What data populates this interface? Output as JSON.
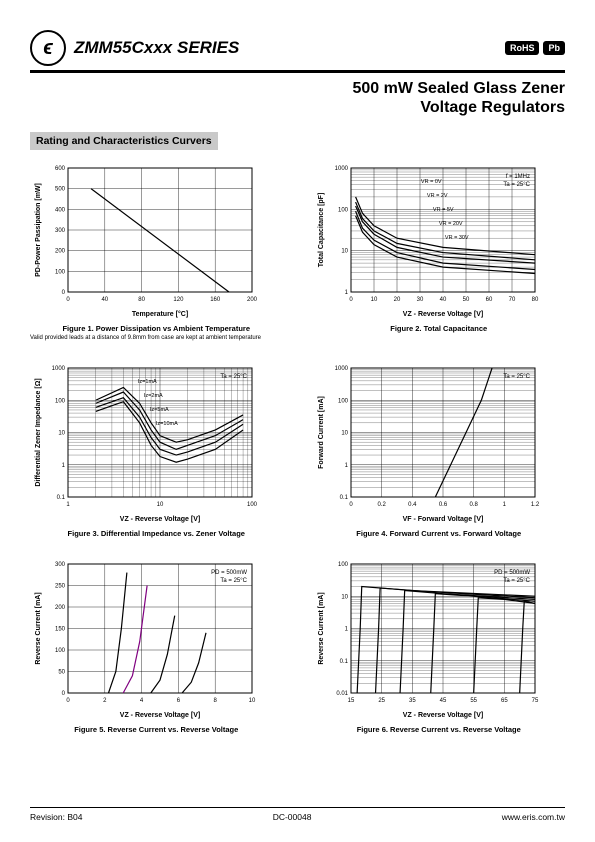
{
  "header": {
    "series": "ZMM55Cxxx SERIES",
    "badges": [
      "RoHS",
      "Pb"
    ],
    "subtitle1": "500 mW Sealed Glass Zener",
    "subtitle2": "Voltage Regulators"
  },
  "section_title": "Rating and Characteristics Curvers",
  "fig1": {
    "caption": "Figure 1. Power Dissipation vs Ambient Temperature",
    "sub": "Valid provided leads at a distance of 9.8mm from case are kept at ambient temperature",
    "xlabel": "Temperature [°C]",
    "ylabel": "PD-Power Passipation [mW]",
    "xticks": [
      "0",
      "40",
      "80",
      "120",
      "160",
      "200"
    ],
    "yticks": [
      "0",
      "100",
      "200",
      "300",
      "400",
      "500",
      "600"
    ],
    "line": [
      [
        25,
        500
      ],
      [
        175,
        0
      ]
    ],
    "grid_color": "#000000",
    "plot_bg": "#ffffff",
    "line_color": "#000000"
  },
  "fig2": {
    "caption": "Figure 2. Total Capacitance",
    "xlabel": "VZ - Reverse Voltage [V]",
    "ylabel": "Total Capacitance [pF]",
    "xticks": [
      "0",
      "10",
      "20",
      "30",
      "40",
      "50",
      "60",
      "70",
      "80"
    ],
    "yticks": [
      "1",
      "10",
      "100",
      "1000"
    ],
    "annotations": [
      "f = 1MHz",
      "Ta = 25°C"
    ],
    "curve_labels": [
      "VR = 0V",
      "VR = 2V",
      "VR = 5V",
      "VR = 20V",
      "VR = 30V"
    ],
    "curves": [
      [
        [
          2,
          200
        ],
        [
          5,
          80
        ],
        [
          10,
          40
        ],
        [
          20,
          20
        ],
        [
          40,
          12
        ],
        [
          80,
          8
        ]
      ],
      [
        [
          2,
          150
        ],
        [
          5,
          60
        ],
        [
          10,
          30
        ],
        [
          20,
          15
        ],
        [
          40,
          9
        ],
        [
          80,
          6
        ]
      ],
      [
        [
          2,
          120
        ],
        [
          5,
          50
        ],
        [
          10,
          25
        ],
        [
          20,
          12
        ],
        [
          40,
          7
        ],
        [
          80,
          5
        ]
      ],
      [
        [
          2,
          90
        ],
        [
          5,
          35
        ],
        [
          10,
          18
        ],
        [
          20,
          9
        ],
        [
          40,
          5
        ],
        [
          80,
          3.5
        ]
      ],
      [
        [
          2,
          70
        ],
        [
          5,
          28
        ],
        [
          10,
          14
        ],
        [
          20,
          7
        ],
        [
          40,
          4
        ],
        [
          80,
          2.8
        ]
      ]
    ],
    "grid_color": "#000000",
    "line_color": "#000000"
  },
  "fig3": {
    "caption": "Figure 3. Differential Impedance vs. Zener Voltage",
    "xlabel": "VZ - Reverse Voltage [V]",
    "ylabel": "Differential Zener Impedance [Ω]",
    "xticks": [
      "1",
      "10",
      "100"
    ],
    "yticks": [
      "0.1",
      "1",
      "10",
      "100",
      "1000"
    ],
    "annotations": [
      "Iz=1mA",
      "Iz=2mA",
      "Iz=5mA",
      "Iz=10mA",
      "Ta = 25°C"
    ],
    "curves": [
      [
        [
          2,
          100
        ],
        [
          4,
          250
        ],
        [
          6,
          80
        ],
        [
          8,
          20
        ],
        [
          10,
          8
        ],
        [
          15,
          5
        ],
        [
          20,
          6
        ],
        [
          40,
          12
        ],
        [
          80,
          35
        ]
      ],
      [
        [
          2,
          80
        ],
        [
          4,
          180
        ],
        [
          6,
          50
        ],
        [
          8,
          12
        ],
        [
          10,
          5
        ],
        [
          15,
          3
        ],
        [
          20,
          4
        ],
        [
          40,
          8
        ],
        [
          80,
          25
        ]
      ],
      [
        [
          2,
          60
        ],
        [
          4,
          120
        ],
        [
          6,
          30
        ],
        [
          8,
          7
        ],
        [
          10,
          3
        ],
        [
          15,
          2
        ],
        [
          20,
          2.5
        ],
        [
          40,
          5
        ],
        [
          80,
          18
        ]
      ],
      [
        [
          2,
          45
        ],
        [
          4,
          90
        ],
        [
          6,
          20
        ],
        [
          8,
          4
        ],
        [
          10,
          1.8
        ],
        [
          15,
          1.2
        ],
        [
          20,
          1.5
        ],
        [
          40,
          3
        ],
        [
          80,
          12
        ]
      ]
    ],
    "grid_color": "#000000",
    "line_color": "#000000"
  },
  "fig4": {
    "caption": "Figure 4. Forward Current vs. Forward Voltage",
    "xlabel": "VF - Forward Voltage [V]",
    "ylabel": "Forward Current [mA]",
    "xticks": [
      "0",
      "0.2",
      "0.4",
      "0.6",
      "0.8",
      "1",
      "1.2"
    ],
    "yticks": [
      "0.1",
      "1",
      "10",
      "100",
      "1000"
    ],
    "annotations": [
      "Ta = 25°C"
    ],
    "line": [
      [
        0.55,
        0.1
      ],
      [
        0.72,
        5
      ],
      [
        0.85,
        100
      ],
      [
        0.92,
        1000
      ]
    ],
    "grid_color": "#000000",
    "line_color": "#000000"
  },
  "fig5": {
    "caption": "Figure 5. Reverse Current vs. Reverse Voltage",
    "xlabel": "VZ - Reverse Voltage [V]",
    "ylabel": "Reverse Current [mA]",
    "xticks": [
      "0",
      "2",
      "4",
      "6",
      "8",
      "10"
    ],
    "yticks": [
      "0",
      "50",
      "100",
      "150",
      "200",
      "250",
      "300"
    ],
    "annotations": [
      "PD = 500mW",
      "Ta = 25°C"
    ],
    "curves": [
      [
        [
          2.2,
          0
        ],
        [
          2.6,
          50
        ],
        [
          2.9,
          150
        ],
        [
          3.2,
          280
        ]
      ],
      [
        [
          3.0,
          0
        ],
        [
          3.5,
          40
        ],
        [
          3.9,
          120
        ],
        [
          4.3,
          250
        ]
      ],
      [
        [
          4.5,
          0
        ],
        [
          5.0,
          30
        ],
        [
          5.4,
          90
        ],
        [
          5.8,
          180
        ]
      ],
      [
        [
          6.2,
          0
        ],
        [
          6.7,
          25
        ],
        [
          7.1,
          70
        ],
        [
          7.5,
          140
        ]
      ]
    ],
    "colors": [
      "#000000",
      "#800080",
      "#000000",
      "#000000"
    ],
    "grid_color": "#000000"
  },
  "fig6": {
    "caption": "Figure 6. Reverse Current vs. Reverse Voltage",
    "xlabel": "VZ - Reverse Voltage [V]",
    "ylabel": "Reverse Current [mA]",
    "xticks": [
      "15",
      "25",
      "35",
      "45",
      "55",
      "65",
      "75"
    ],
    "yticks": [
      "0.01",
      "0.1",
      "1",
      "10",
      "100"
    ],
    "annotations": [
      "PD = 500mW",
      "Ta = 25°C"
    ],
    "curves": [
      [
        [
          17,
          0.01
        ],
        [
          18,
          1
        ],
        [
          18.5,
          20
        ],
        [
          35,
          15
        ],
        [
          75,
          10
        ]
      ],
      [
        [
          23,
          0.01
        ],
        [
          24,
          1
        ],
        [
          24.5,
          18
        ],
        [
          40,
          14
        ],
        [
          75,
          9
        ]
      ],
      [
        [
          31,
          0.01
        ],
        [
          32,
          1
        ],
        [
          32.5,
          15
        ],
        [
          45,
          12
        ],
        [
          75,
          8
        ]
      ],
      [
        [
          41,
          0.01
        ],
        [
          42,
          1
        ],
        [
          42.5,
          12
        ],
        [
          55,
          10
        ],
        [
          75,
          7
        ]
      ],
      [
        [
          55,
          0.01
        ],
        [
          56,
          1
        ],
        [
          56.5,
          9
        ],
        [
          65,
          8
        ],
        [
          75,
          6
        ]
      ],
      [
        [
          70,
          0.01
        ],
        [
          71,
          1
        ],
        [
          71.5,
          7
        ],
        [
          75,
          6
        ]
      ]
    ],
    "grid_color": "#000000",
    "line_color": "#000000"
  },
  "footer": {
    "left": "Revision: B04",
    "center": "DC-00048",
    "right": "www.eris.com.tw"
  }
}
